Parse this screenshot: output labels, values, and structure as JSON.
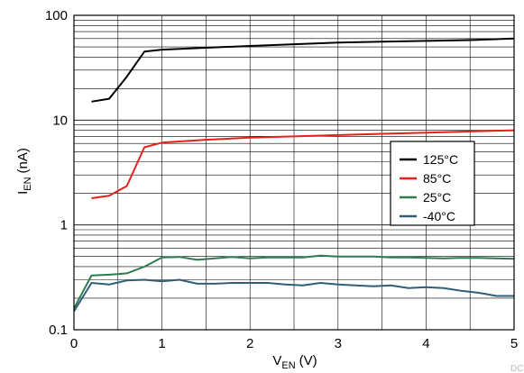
{
  "chart_data": {
    "type": "line",
    "xlabel_main": "V",
    "xlabel_sub": "EN",
    "xlabel_unit": "(V)",
    "ylabel_main": "I",
    "ylabel_sub": "EN",
    "ylabel_unit": "(nA)",
    "xlim": [
      0,
      5
    ],
    "ylim": [
      0.1,
      100
    ],
    "yscale": "log",
    "xticks": [
      "0",
      "1",
      "2",
      "3",
      "4",
      "5"
    ],
    "yticks": [
      "0.1",
      "1",
      "10",
      "100"
    ],
    "grid": true,
    "legend_position": "right",
    "series": [
      {
        "name": "125°C",
        "color": "#000000",
        "x": [
          0.2,
          0.4,
          0.6,
          0.8,
          1.0,
          1.5,
          2.0,
          2.5,
          3.0,
          3.5,
          4.0,
          4.5,
          5.0
        ],
        "y": [
          15,
          16,
          26,
          45,
          47,
          49,
          51,
          53,
          55,
          56,
          57,
          58,
          60
        ]
      },
      {
        "name": "85°C",
        "color": "#e8201c",
        "x": [
          0.2,
          0.4,
          0.6,
          0.8,
          1.0,
          1.5,
          2.0,
          2.5,
          3.0,
          3.5,
          4.0,
          4.5,
          5.0
        ],
        "y": [
          1.8,
          1.9,
          2.35,
          5.5,
          6.1,
          6.5,
          6.8,
          7.0,
          7.2,
          7.4,
          7.6,
          7.8,
          8.0
        ]
      },
      {
        "name": "25°C",
        "color": "#2f7a4f",
        "x": [
          0.0,
          0.2,
          0.4,
          0.6,
          0.8,
          1.0,
          1.2,
          1.4,
          1.6,
          1.8,
          2.0,
          2.2,
          2.4,
          2.6,
          2.8,
          3.0,
          3.2,
          3.4,
          3.6,
          3.8,
          4.0,
          4.2,
          4.4,
          4.6,
          4.8,
          5.0
        ],
        "y": [
          0.16,
          0.33,
          0.335,
          0.345,
          0.4,
          0.49,
          0.495,
          0.465,
          0.48,
          0.495,
          0.48,
          0.49,
          0.49,
          0.49,
          0.51,
          0.5,
          0.5,
          0.5,
          0.49,
          0.49,
          0.485,
          0.48,
          0.485,
          0.485,
          0.48,
          0.475
        ]
      },
      {
        "name": "-40°C",
        "color": "#2e5e78",
        "x": [
          0.0,
          0.2,
          0.4,
          0.6,
          0.8,
          1.0,
          1.2,
          1.4,
          1.6,
          1.8,
          2.0,
          2.2,
          2.4,
          2.6,
          2.8,
          3.0,
          3.2,
          3.4,
          3.6,
          3.8,
          4.0,
          4.2,
          4.4,
          4.6,
          4.8,
          5.0
        ],
        "y": [
          0.15,
          0.28,
          0.27,
          0.295,
          0.3,
          0.29,
          0.3,
          0.275,
          0.275,
          0.28,
          0.28,
          0.28,
          0.27,
          0.265,
          0.28,
          0.27,
          0.265,
          0.26,
          0.265,
          0.25,
          0.255,
          0.25,
          0.235,
          0.225,
          0.21,
          0.21
        ]
      }
    ]
  },
  "watermark": "DC"
}
